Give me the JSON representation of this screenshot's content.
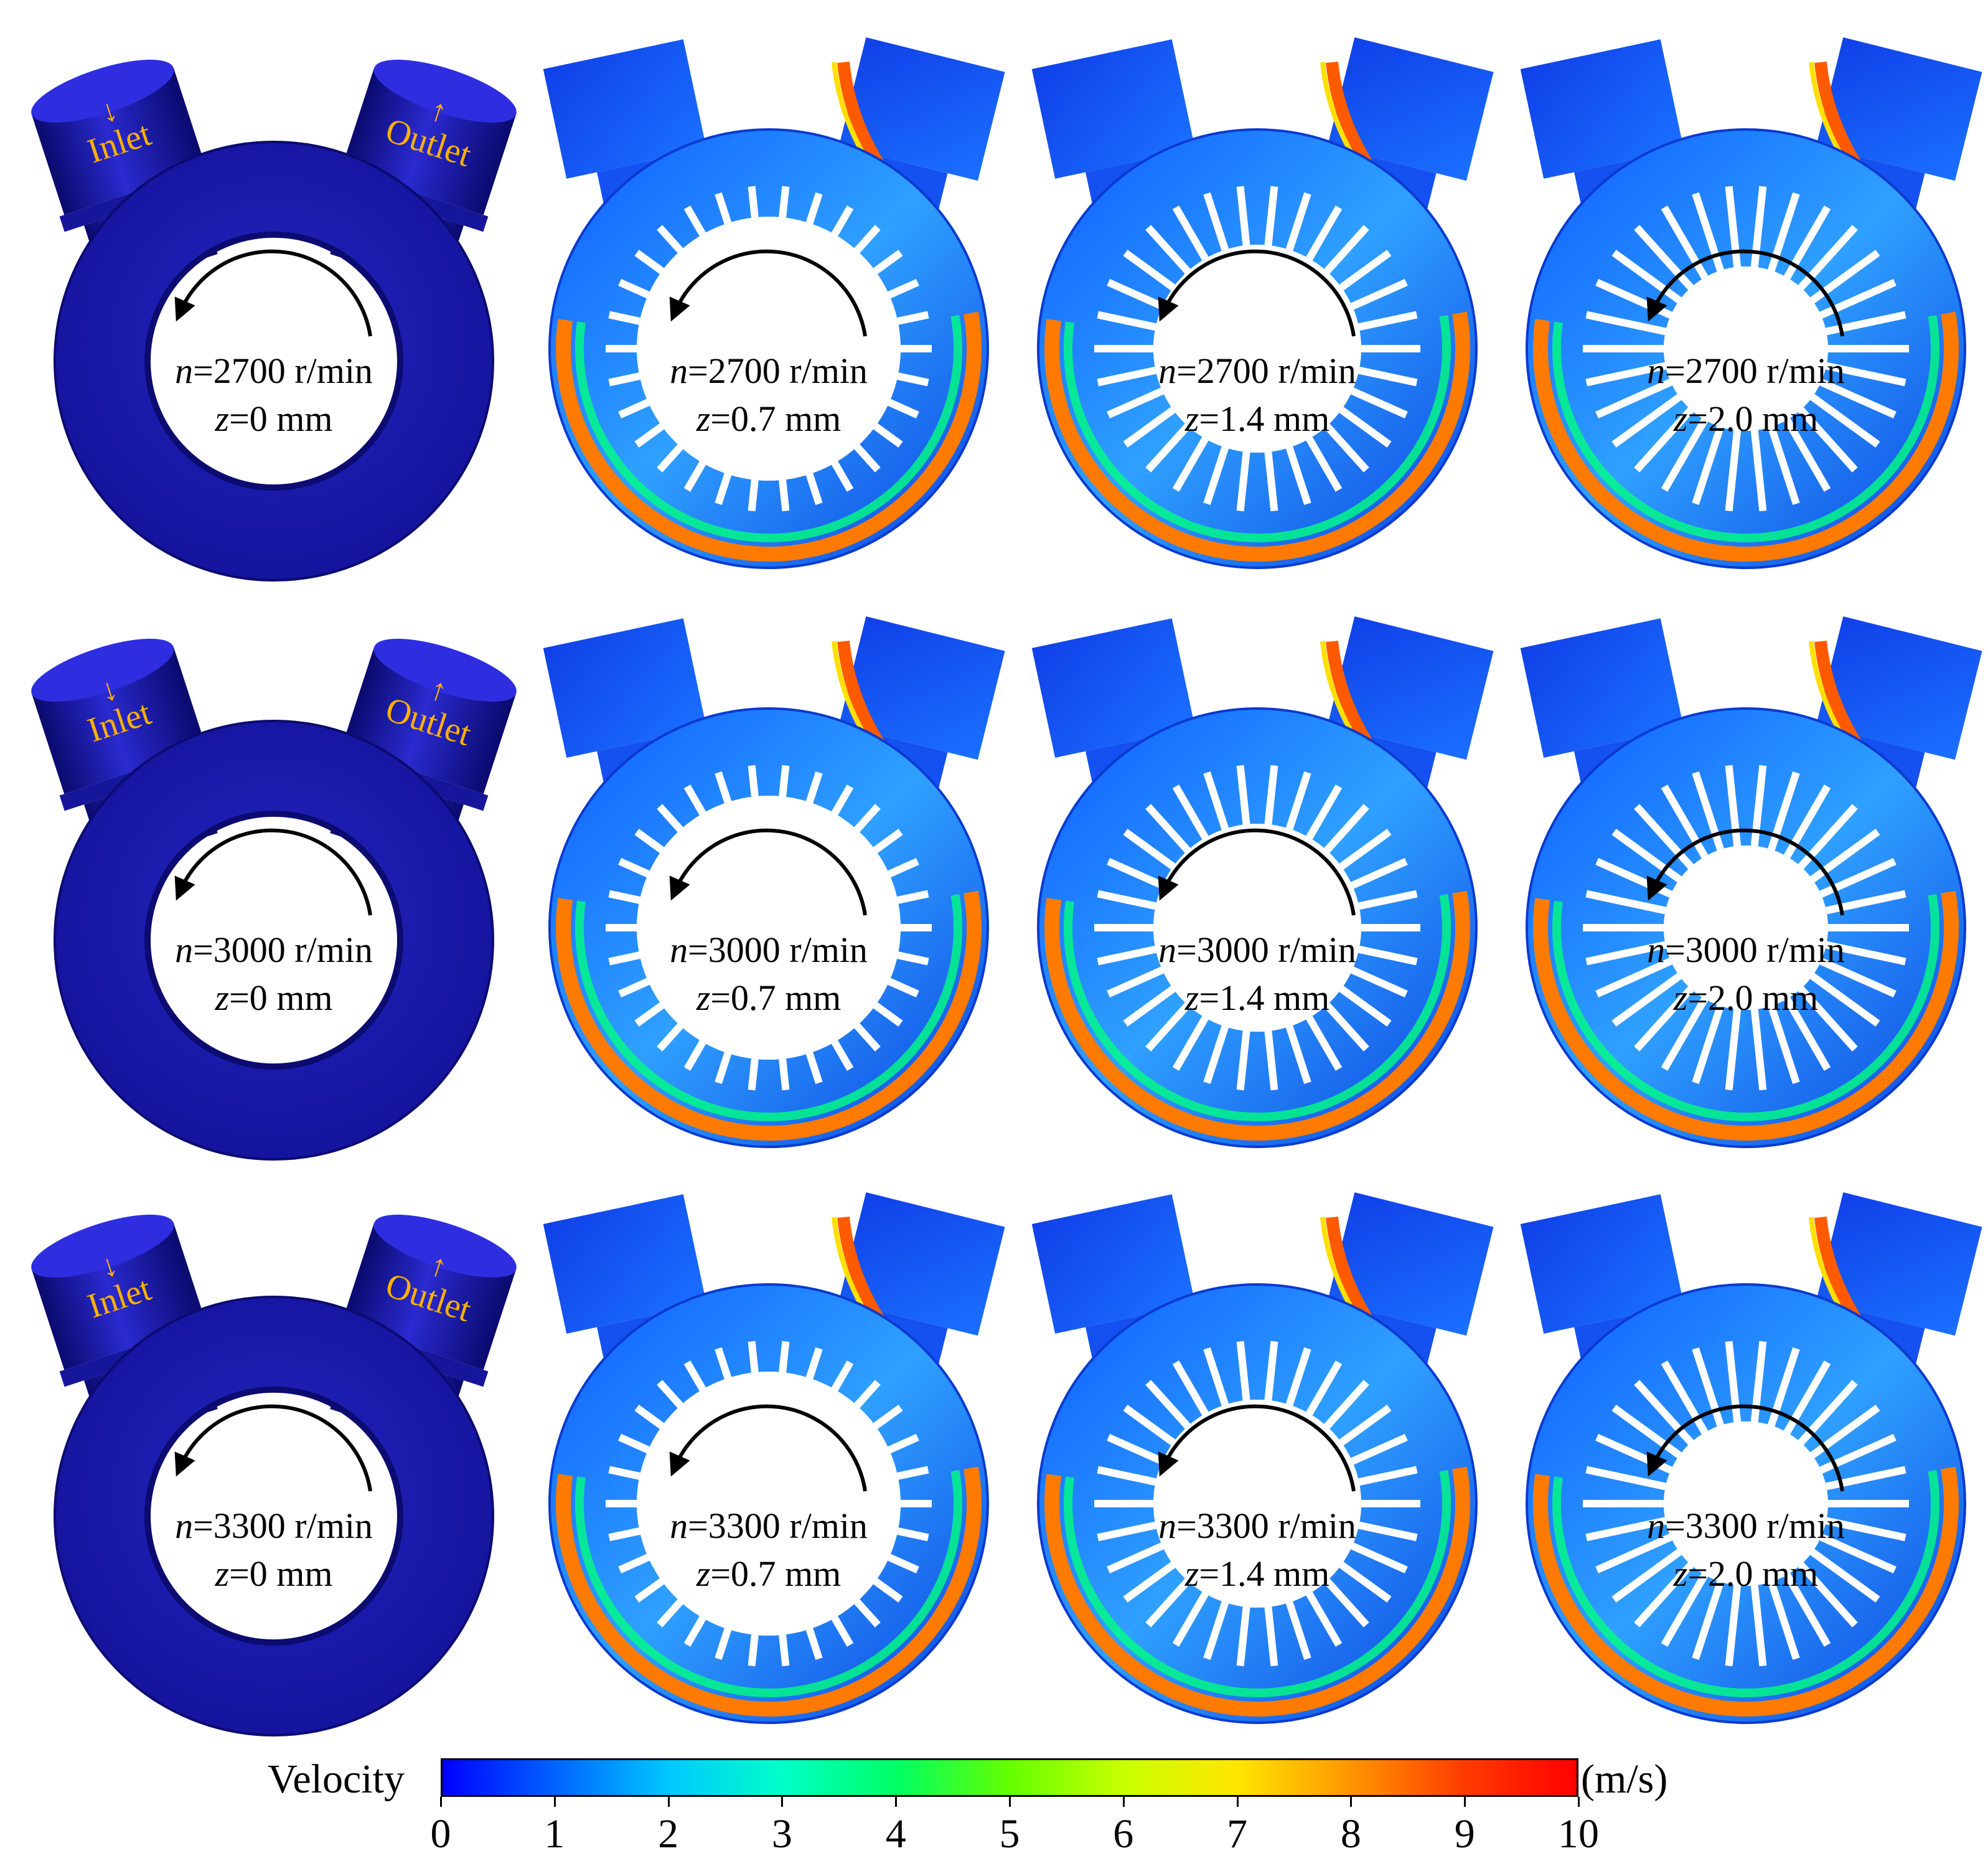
{
  "colorbar": {
    "title": "Velocity",
    "unit": "(m/s)",
    "ticks": [
      "0",
      "1",
      "2",
      "3",
      "4",
      "5",
      "6",
      "7",
      "8",
      "9",
      "10"
    ],
    "min": 0,
    "max": 10,
    "colors": [
      "#0000ff",
      "#0064ff",
      "#00c8ff",
      "#00ffc8",
      "#00ff64",
      "#64ff00",
      "#c8ff00",
      "#ffe600",
      "#ff9600",
      "#ff3c00",
      "#ff0000"
    ]
  },
  "ports": {
    "inlet": "Inlet",
    "outlet": "Outlet"
  },
  "rows": [
    {
      "speed": "=2700 r/min",
      "panels": [
        "=0 mm",
        "=0.7 mm",
        "=1.4 mm",
        "=2.0 mm"
      ]
    },
    {
      "speed": "=3000 r/min",
      "panels": [
        "=0 mm",
        "=0.7 mm",
        "=1.4 mm",
        "=2.0 mm"
      ]
    },
    {
      "speed": "=3300 r/min",
      "panels": [
        "=0 mm",
        "=0.7 mm",
        "=1.4 mm",
        "=2.0 mm"
      ]
    }
  ],
  "symbols": {
    "speed": "n",
    "gap": "z"
  },
  "colors": {
    "solid_body": "#1a1aa8",
    "body_dark": "#0d0d7a",
    "port_label": "#ffb000"
  }
}
